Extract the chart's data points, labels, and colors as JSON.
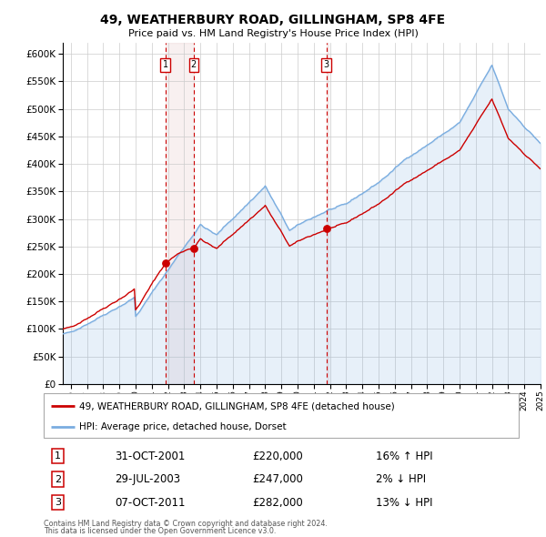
{
  "title": "49, WEATHERBURY ROAD, GILLINGHAM, SP8 4FE",
  "subtitle": "Price paid vs. HM Land Registry's House Price Index (HPI)",
  "legend_line1": "49, WEATHERBURY ROAD, GILLINGHAM, SP8 4FE (detached house)",
  "legend_line2": "HPI: Average price, detached house, Dorset",
  "footer_line1": "Contains HM Land Registry data © Crown copyright and database right 2024.",
  "footer_line2": "This data is licensed under the Open Government Licence v3.0.",
  "transactions": [
    {
      "num": "1",
      "date": "31-OCT-2001",
      "price": "£220,000",
      "hpi": "16% ↑ HPI",
      "year": 2001.83,
      "value": 220000
    },
    {
      "num": "2",
      "date": "29-JUL-2003",
      "price": "£247,000",
      "hpi": "2% ↓ HPI",
      "year": 2003.58,
      "value": 247000
    },
    {
      "num": "3",
      "date": "07-OCT-2011",
      "price": "£282,000",
      "hpi": "13% ↓ HPI",
      "year": 2011.77,
      "value": 282000
    }
  ],
  "property_color": "#cc0000",
  "hpi_color": "#7aade0",
  "hpi_fill_color": "#ddeeff",
  "ylim": [
    0,
    620000
  ],
  "xlim": [
    1995.5,
    2025.0
  ],
  "background_color": "#ffffff",
  "grid_color": "#cccccc",
  "vline_color": "#cc0000",
  "vline_fill": "#e8d0d0"
}
